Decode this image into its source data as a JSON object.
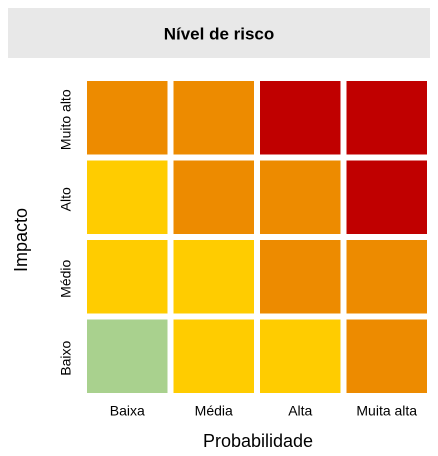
{
  "title": "Nível de risco",
  "y_axis_label": "Impacto",
  "x_axis_label": "Probabilidade",
  "columns": [
    "Baixa",
    "Média",
    "Alta",
    "Muita alta"
  ],
  "rows": [
    {
      "label": "Muito alto",
      "cells": [
        "#ED8B00",
        "#ED8B00",
        "#C00000",
        "#C00000"
      ]
    },
    {
      "label": "Alto",
      "cells": [
        "#FFCC00",
        "#ED8B00",
        "#ED8B00",
        "#C00000"
      ]
    },
    {
      "label": "Médio",
      "cells": [
        "#FFCC00",
        "#FFCC00",
        "#ED8B00",
        "#ED8B00"
      ]
    },
    {
      "label": "Baixo",
      "cells": [
        "#A9D18E",
        "#FFCC00",
        "#FFCC00",
        "#ED8B00"
      ]
    }
  ]
}
